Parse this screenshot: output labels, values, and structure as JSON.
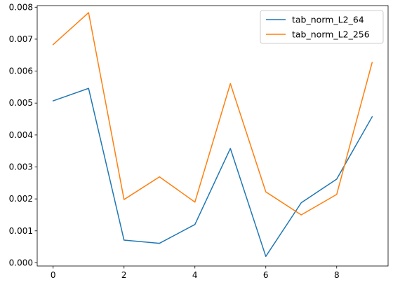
{
  "chart_data": {
    "type": "line",
    "title": "",
    "xlabel": "",
    "ylabel": "",
    "x": [
      0,
      1,
      2,
      3,
      4,
      5,
      6,
      7,
      8,
      9
    ],
    "xlim": [
      -0.45,
      9.45
    ],
    "ylim": [
      -0.0001,
      0.00805
    ],
    "xticks": [
      0,
      2,
      4,
      6,
      8
    ],
    "xtick_labels": [
      "0",
      "2",
      "4",
      "6",
      "8"
    ],
    "yticks": [
      0.0,
      0.001,
      0.002,
      0.003,
      0.004,
      0.005,
      0.006,
      0.007,
      0.008
    ],
    "ytick_labels": [
      "0.000",
      "0.001",
      "0.002",
      "0.003",
      "0.004",
      "0.005",
      "0.006",
      "0.007",
      "0.008"
    ],
    "grid": false,
    "legend_position": "top-right",
    "series": [
      {
        "name": "tab_norm_L2_64",
        "color": "#1f77b4",
        "values": [
          0.00507,
          0.00546,
          0.00071,
          0.00061,
          0.0012,
          0.00358,
          0.0002,
          0.00188,
          0.00262,
          0.00457
        ]
      },
      {
        "name": "tab_norm_L2_256",
        "color": "#ff7f0e",
        "values": [
          0.00683,
          0.00783,
          0.00198,
          0.00269,
          0.0019,
          0.00561,
          0.00222,
          0.0015,
          0.00214,
          0.00627
        ]
      }
    ]
  }
}
